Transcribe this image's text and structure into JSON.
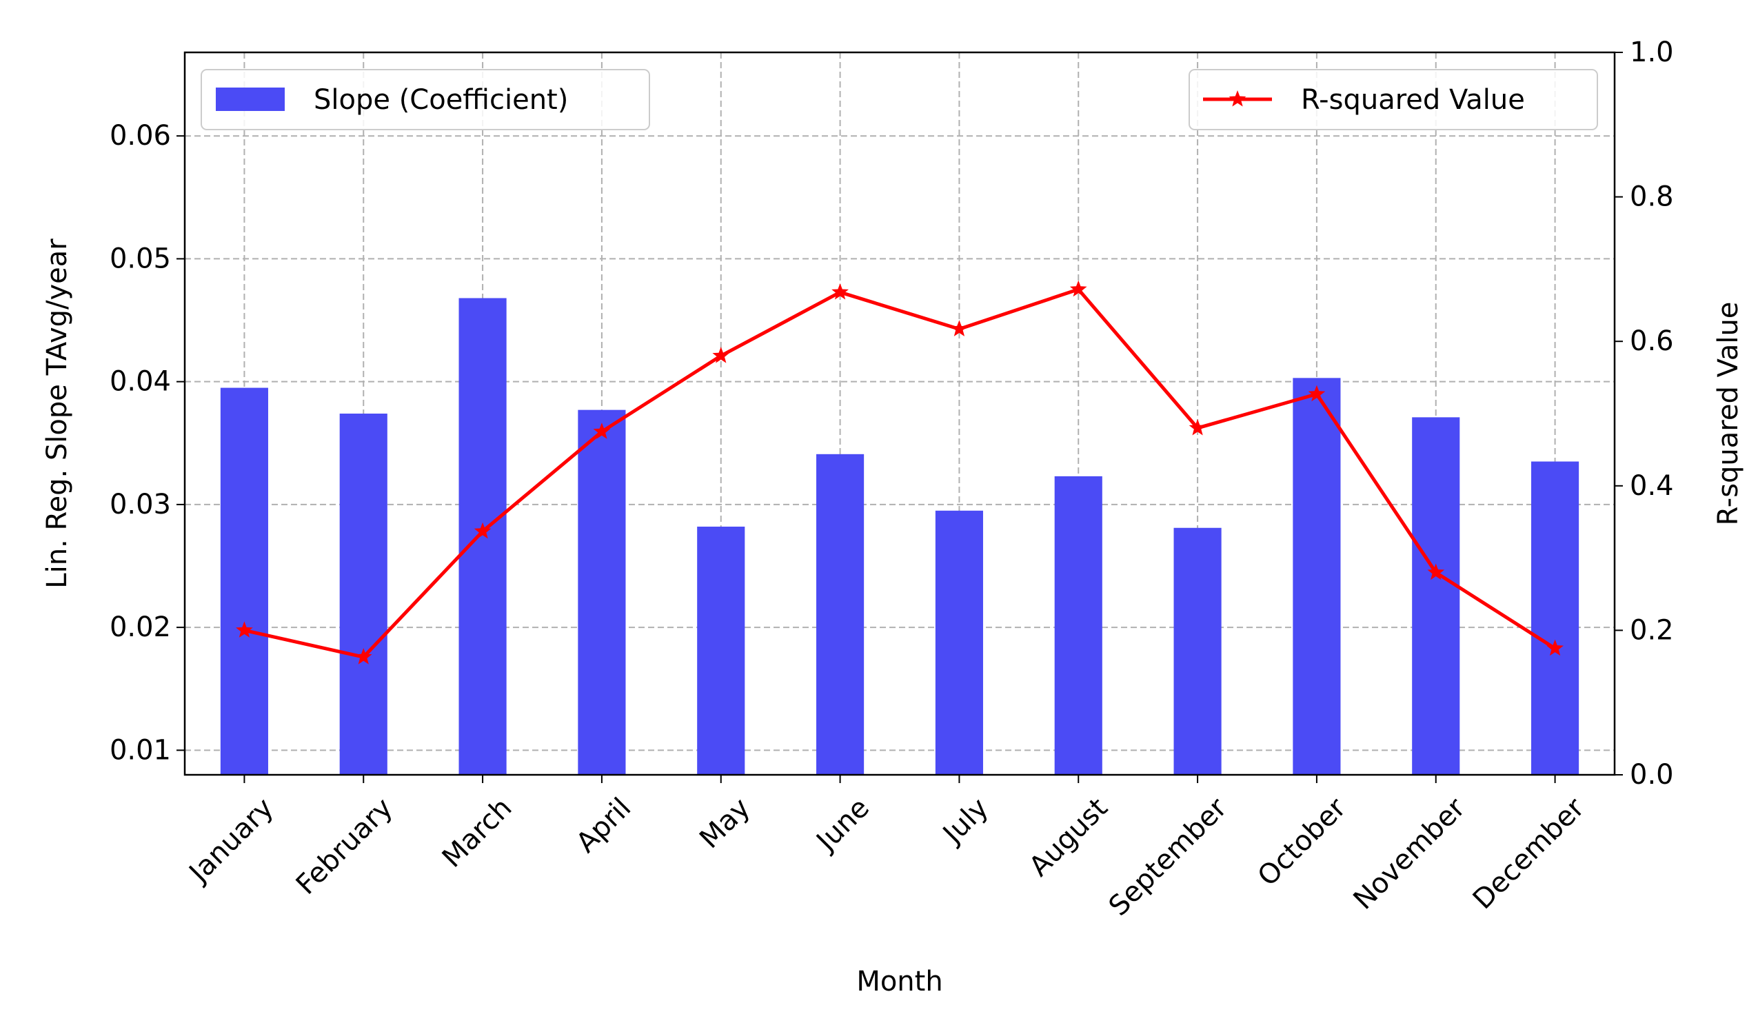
{
  "chart_data": {
    "type": "bar+line",
    "categories": [
      "January",
      "February",
      "March",
      "April",
      "May",
      "June",
      "July",
      "August",
      "September",
      "October",
      "November",
      "December"
    ],
    "xlabel": "Month",
    "ylabel_left": "Lin. Reg. Slope TAvg/year",
    "ylabel_right": "R-squared Value",
    "ylim_left": [
      0.008,
      0.0668
    ],
    "yticks_left": [
      "0.01",
      "0.02",
      "0.03",
      "0.04",
      "0.05",
      "0.06"
    ],
    "ylim_right": [
      0.0,
      1.0
    ],
    "yticks_right": [
      "0.0",
      "0.2",
      "0.4",
      "0.6",
      "0.8",
      "1.0"
    ],
    "grid": true,
    "series": [
      {
        "name": "Slope (Coefficient)",
        "type": "bar",
        "axis": "left",
        "color": "#4b4bf5",
        "values": [
          0.0395,
          0.0374,
          0.0468,
          0.0377,
          0.0282,
          0.0341,
          0.0295,
          0.0323,
          0.0281,
          0.0403,
          0.0371,
          0.0335
        ]
      },
      {
        "name": "R-squared Value",
        "type": "line",
        "axis": "right",
        "color": "#ff0000",
        "marker": "star",
        "values": [
          0.2,
          0.163,
          0.337,
          0.475,
          0.58,
          0.668,
          0.617,
          0.672,
          0.48,
          0.527,
          0.28,
          0.175
        ]
      }
    ],
    "legend": [
      {
        "position": "top-left",
        "label": "Slope (Coefficient)"
      },
      {
        "position": "top-right",
        "label": "R-squared Value"
      }
    ]
  }
}
